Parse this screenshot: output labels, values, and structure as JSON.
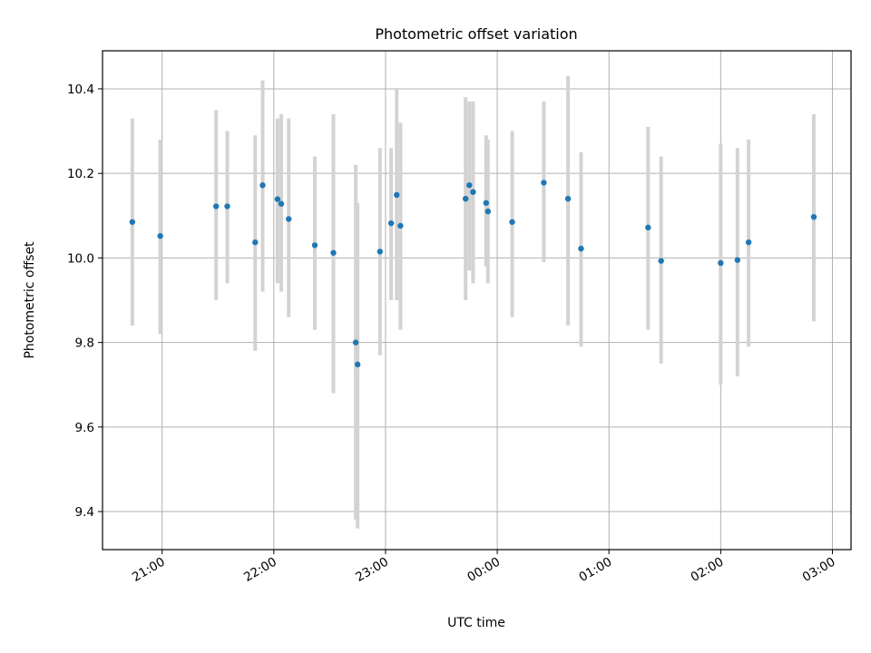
{
  "chart_data": {
    "type": "scatter",
    "title": "Photometric offset variation",
    "xlabel": "UTC time",
    "ylabel": "Photometric offset",
    "x_axis": {
      "kind": "time",
      "start": "20:28",
      "end": "03:10",
      "ticks": [
        "21:00",
        "22:00",
        "23:00",
        "00:00",
        "01:00",
        "02:00",
        "03:00"
      ],
      "tick_label_rotation": 30
    },
    "y_axis": {
      "range": [
        9.31,
        10.49
      ],
      "ticks": [
        "9.4",
        "9.6",
        "9.8",
        "10.0",
        "10.2",
        "10.4"
      ]
    },
    "grid": true,
    "colors": {
      "point": "#1f77b4",
      "errorbar": "#d3d3d3",
      "grid": "#b0b0b0"
    },
    "points": [
      {
        "t": "20:44",
        "y": 10.085,
        "lo": 9.84,
        "hi": 10.33
      },
      {
        "t": "20:59",
        "y": 10.052,
        "lo": 9.82,
        "hi": 10.28
      },
      {
        "t": "21:29",
        "y": 10.122,
        "lo": 9.9,
        "hi": 10.35
      },
      {
        "t": "21:35",
        "y": 10.122,
        "lo": 9.94,
        "hi": 10.3
      },
      {
        "t": "21:50",
        "y": 10.037,
        "lo": 9.78,
        "hi": 10.29
      },
      {
        "t": "21:54",
        "y": 10.172,
        "lo": 9.92,
        "hi": 10.42
      },
      {
        "t": "22:02",
        "y": 10.139,
        "lo": 9.94,
        "hi": 10.33
      },
      {
        "t": "22:04",
        "y": 10.128,
        "lo": 9.92,
        "hi": 10.34
      },
      {
        "t": "22:08",
        "y": 10.092,
        "lo": 9.86,
        "hi": 10.33
      },
      {
        "t": "22:22",
        "y": 10.03,
        "lo": 9.83,
        "hi": 10.24
      },
      {
        "t": "22:32",
        "y": 10.012,
        "lo": 9.68,
        "hi": 10.34
      },
      {
        "t": "22:44",
        "y": 9.8,
        "lo": 9.38,
        "hi": 10.22
      },
      {
        "t": "22:45",
        "y": 9.748,
        "lo": 9.36,
        "hi": 10.13
      },
      {
        "t": "22:57",
        "y": 10.015,
        "lo": 9.77,
        "hi": 10.26
      },
      {
        "t": "23:03",
        "y": 10.082,
        "lo": 9.9,
        "hi": 10.26
      },
      {
        "t": "23:06",
        "y": 10.149,
        "lo": 9.9,
        "hi": 10.4
      },
      {
        "t": "23:08",
        "y": 10.076,
        "lo": 9.83,
        "hi": 10.32
      },
      {
        "t": "23:43",
        "y": 10.14,
        "lo": 9.9,
        "hi": 10.38
      },
      {
        "t": "23:45",
        "y": 10.172,
        "lo": 9.97,
        "hi": 10.37
      },
      {
        "t": "23:47",
        "y": 10.156,
        "lo": 9.94,
        "hi": 10.37
      },
      {
        "t": "23:54",
        "y": 10.13,
        "lo": 9.98,
        "hi": 10.29
      },
      {
        "t": "23:55",
        "y": 10.11,
        "lo": 9.94,
        "hi": 10.28
      },
      {
        "t": "00:08",
        "y": 10.085,
        "lo": 9.86,
        "hi": 10.3
      },
      {
        "t": "00:25",
        "y": 10.178,
        "lo": 9.99,
        "hi": 10.37
      },
      {
        "t": "00:38",
        "y": 10.14,
        "lo": 9.84,
        "hi": 10.43
      },
      {
        "t": "00:45",
        "y": 10.022,
        "lo": 9.79,
        "hi": 10.25
      },
      {
        "t": "01:21",
        "y": 10.072,
        "lo": 9.83,
        "hi": 10.31
      },
      {
        "t": "01:28",
        "y": 9.993,
        "lo": 9.75,
        "hi": 10.24
      },
      {
        "t": "02:00",
        "y": 9.988,
        "lo": 9.7,
        "hi": 10.27
      },
      {
        "t": "02:09",
        "y": 9.995,
        "lo": 9.72,
        "hi": 10.26
      },
      {
        "t": "02:15",
        "y": 10.037,
        "lo": 9.79,
        "hi": 10.28
      },
      {
        "t": "02:50",
        "y": 10.097,
        "lo": 9.85,
        "hi": 10.34
      }
    ]
  }
}
